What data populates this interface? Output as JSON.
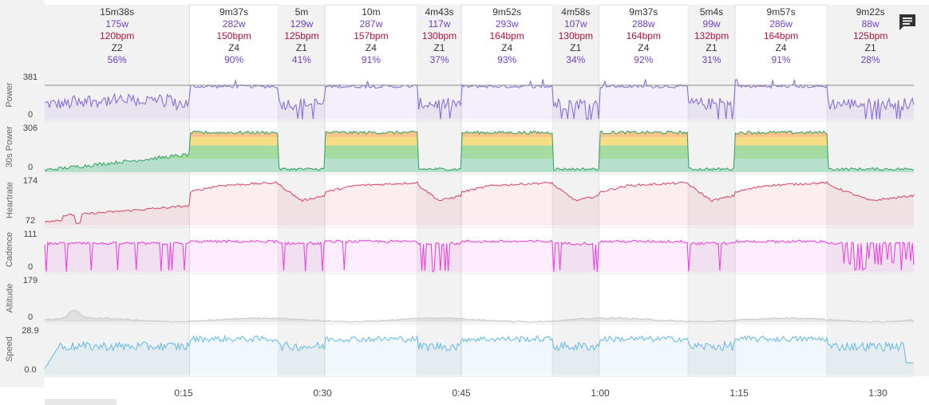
{
  "intervals": [
    {
      "duration": "15m38s",
      "power": "175w",
      "heartrate": "120bpm",
      "zone": "Z2",
      "percent": "56%",
      "start": 0,
      "end": 15.63,
      "work": false
    },
    {
      "duration": "9m37s",
      "power": "282w",
      "heartrate": "150bpm",
      "zone": "Z4",
      "percent": "90%",
      "start": 15.63,
      "end": 25.25,
      "work": true
    },
    {
      "duration": "5m",
      "power": "129w",
      "heartrate": "125bpm",
      "zone": "Z1",
      "percent": "41%",
      "start": 25.25,
      "end": 30.25,
      "work": false
    },
    {
      "duration": "10m",
      "power": "287w",
      "heartrate": "157bpm",
      "zone": "Z4",
      "percent": "91%",
      "start": 30.25,
      "end": 40.25,
      "work": true
    },
    {
      "duration": "4m43s",
      "power": "117w",
      "heartrate": "130bpm",
      "zone": "Z1",
      "percent": "37%",
      "start": 40.25,
      "end": 45.0,
      "work": false
    },
    {
      "duration": "9m52s",
      "power": "293w",
      "heartrate": "164bpm",
      "zone": "Z4",
      "percent": "93%",
      "start": 45.0,
      "end": 54.85,
      "work": true
    },
    {
      "duration": "4m58s",
      "power": "107w",
      "heartrate": "130bpm",
      "zone": "Z1",
      "percent": "34%",
      "start": 54.85,
      "end": 59.85,
      "work": false
    },
    {
      "duration": "9m37s",
      "power": "288w",
      "heartrate": "164bpm",
      "zone": "Z4",
      "percent": "92%",
      "start": 59.85,
      "end": 69.5,
      "work": true
    },
    {
      "duration": "5m4s",
      "power": "99w",
      "heartrate": "132bpm",
      "zone": "Z1",
      "percent": "31%",
      "start": 69.5,
      "end": 74.55,
      "work": false
    },
    {
      "duration": "9m57s",
      "power": "286w",
      "heartrate": "164bpm",
      "zone": "Z4",
      "percent": "91%",
      "start": 74.55,
      "end": 84.5,
      "work": true
    },
    {
      "duration": "9m22s",
      "power": "88w",
      "heartrate": "125bpm",
      "zone": "Z1",
      "percent": "28%",
      "start": 84.5,
      "end": 93.87,
      "work": false
    }
  ],
  "chart_data": [
    {
      "type": "line",
      "channel": "Power",
      "ylabel": "Power",
      "ytick_labels": [
        "381",
        "0"
      ],
      "ylim": [
        0,
        381
      ],
      "threshold": 315,
      "color": "#8a6fd6"
    },
    {
      "type": "area",
      "channel": "30s Power",
      "ylabel": "30s Power",
      "ytick_labels": [
        "306",
        "0"
      ],
      "ylim": [
        0,
        306
      ],
      "zone_bands": [
        95,
        190,
        250
      ],
      "zone_colors": [
        "#b6e0cd",
        "#a5dba0",
        "#f7dd86",
        "#f9c48a"
      ],
      "color": "#3aa56b"
    },
    {
      "type": "area",
      "channel": "Heartrate",
      "ylabel": "Heartrate",
      "ytick_labels": [
        "174",
        "72"
      ],
      "ylim": [
        72,
        174
      ],
      "color": "#d8506f"
    },
    {
      "type": "area",
      "channel": "Cadence",
      "ylabel": "Cadence",
      "ytick_labels": [
        "111",
        "0"
      ],
      "ylim": [
        0,
        111
      ],
      "color": "#ee42e0"
    },
    {
      "type": "area",
      "channel": "Altitude",
      "ylabel": "Altitude",
      "ytick_labels": [
        "179",
        "0"
      ],
      "ylim": [
        0,
        179
      ],
      "color": "#c9c9c9"
    },
    {
      "type": "area",
      "channel": "Speed",
      "ylabel": "Speed",
      "ytick_labels": [
        "28.9",
        "0.0"
      ],
      "ylim": [
        0,
        28.9
      ],
      "color": "#6fbde3"
    }
  ],
  "x_axis": {
    "unit": "minutes",
    "xlim": [
      0,
      93.87
    ],
    "ticks": [
      {
        "value": 15,
        "label": "0:15"
      },
      {
        "value": 30,
        "label": "0:30"
      },
      {
        "value": 45,
        "label": "0:45"
      },
      {
        "value": 60,
        "label": "1:00"
      },
      {
        "value": 75,
        "label": "1:15"
      },
      {
        "value": 90,
        "label": "1:30"
      }
    ]
  }
}
